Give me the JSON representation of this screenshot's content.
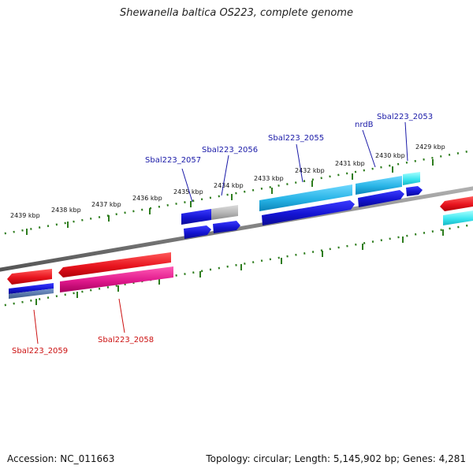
{
  "title": "Shewanella baltica OS223, complete genome",
  "footer": {
    "accession": "Accession: NC_011663",
    "topology": "Topology: circular; Length: 5,145,902 bp; Genes: 4,281"
  },
  "ticks": [
    {
      "kbp": 2439,
      "label": "2439 kbp"
    },
    {
      "kbp": 2438,
      "label": "2438 kbp"
    },
    {
      "kbp": 2437,
      "label": "2437 kbp"
    },
    {
      "kbp": 2436,
      "label": "2436 kbp"
    },
    {
      "kbp": 2435,
      "label": "2435 kbp"
    },
    {
      "kbp": 2434,
      "label": "2434 kbp"
    },
    {
      "kbp": 2433,
      "label": "2433 kbp"
    },
    {
      "kbp": 2432,
      "label": "2432 kbp"
    },
    {
      "kbp": 2431,
      "label": "2431 kbp"
    },
    {
      "kbp": 2430,
      "label": "2430 kbp"
    },
    {
      "kbp": 2429,
      "label": "2429 kbp"
    }
  ],
  "gene_labels": [
    {
      "name": "Sbal223_2057",
      "color": "#1a1aa8"
    },
    {
      "name": "Sbal223_2056",
      "color": "#1a1aa8"
    },
    {
      "name": "Sbal223_2055",
      "color": "#1a1aa8"
    },
    {
      "name": "nrdB",
      "color": "#1a1aa8"
    },
    {
      "name": "Sbal223_2053",
      "color": "#1a1aa8"
    },
    {
      "name": "Sbal223_2058",
      "color": "#cc1111"
    },
    {
      "name": "Sbal223_2059",
      "color": "#cc1111"
    }
  ],
  "colors": {
    "backbone": "#808080",
    "tick_green": "#2e7d1e",
    "forward_red": "#e8141e",
    "forward_magenta": "#e0198c",
    "blue": "#1414d2",
    "light_blue": "#28b4e6",
    "cyan": "#3ce6f0",
    "grey": "#b4b4b4"
  }
}
